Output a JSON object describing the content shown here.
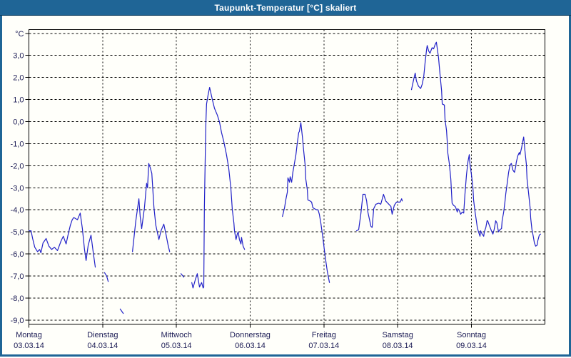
{
  "window": {
    "title": "Taupunkt-Temperatur [°C] skaliert"
  },
  "colors": {
    "titlebar_bg": "#1f6596",
    "titlebar_text": "#ffffff",
    "window_border": "#1f6596",
    "content_bg": "#fffffa",
    "frame": "#000000",
    "grid": "#000000",
    "tick_label": "#1c1c55",
    "line": "#2121c8"
  },
  "chart_data": {
    "type": "line",
    "title": "Taupunkt-Temperatur [°C] skaliert",
    "y_axis": {
      "unit": "°C",
      "range": [
        -9.2,
        4.2
      ],
      "ticks": [
        {
          "value": 4,
          "label": "°C"
        },
        {
          "value": 3,
          "label": "3,0"
        },
        {
          "value": 2,
          "label": "2,0"
        },
        {
          "value": 1,
          "label": "1,0"
        },
        {
          "value": 0,
          "label": "0,0"
        },
        {
          "value": -1,
          "label": "-1,0"
        },
        {
          "value": -2,
          "label": "-2,0"
        },
        {
          "value": -3,
          "label": "-3,0"
        },
        {
          "value": -4,
          "label": "-4,0"
        },
        {
          "value": -5,
          "label": "-5,0"
        },
        {
          "value": -6,
          "label": "-6,0"
        },
        {
          "value": -7,
          "label": "-7,0"
        },
        {
          "value": -8,
          "label": "-8,0"
        },
        {
          "value": -9,
          "label": "-9,0"
        }
      ]
    },
    "x_axis": {
      "unit": "hours_since_monday_0000",
      "range_hours": [
        0,
        168
      ],
      "ticks": [
        {
          "hour": 0,
          "day": "Montag",
          "date": "03.03.14"
        },
        {
          "hour": 24,
          "day": "Dienstag",
          "date": "04.03.14"
        },
        {
          "hour": 48,
          "day": "Mittwoch",
          "date": "05.03.14"
        },
        {
          "hour": 72,
          "day": "Donnerstag",
          "date": "06.03.14"
        },
        {
          "hour": 96,
          "day": "Freitag",
          "date": "07.03.14"
        },
        {
          "hour": 120,
          "day": "Samstag",
          "date": "08.03.14"
        },
        {
          "hour": 144,
          "day": "Sonntag",
          "date": "09.03.14"
        }
      ]
    },
    "grid": {
      "horizontal": "dashed",
      "vertical": "dashed"
    },
    "legend": "none",
    "series": [
      {
        "name": "Taupunkt-Temperatur",
        "color": "#2121c8",
        "segments": [
          [
            [
              0,
              -4.95
            ],
            [
              0.7,
              -4.95
            ],
            [
              1.2,
              -5.3
            ],
            [
              1.9,
              -5.7
            ],
            [
              2.8,
              -5.9
            ],
            [
              3.5,
              -5.8
            ],
            [
              3.9,
              -5.95
            ],
            [
              4.6,
              -5.5
            ],
            [
              5.4,
              -5.35
            ],
            [
              5.6,
              -5.3
            ],
            [
              6.5,
              -5.65
            ],
            [
              7.4,
              -5.8
            ],
            [
              8.3,
              -5.7
            ],
            [
              9.3,
              -5.85
            ],
            [
              10.5,
              -5.4
            ],
            [
              11.2,
              -5.2
            ],
            [
              12.1,
              -5.55
            ],
            [
              12.8,
              -5.1
            ],
            [
              13.5,
              -4.7
            ],
            [
              14.1,
              -4.45
            ],
            [
              14.6,
              -4.35
            ],
            [
              15.8,
              -4.45
            ],
            [
              16.7,
              -4.15
            ],
            [
              17.4,
              -4.85
            ],
            [
              18.1,
              -5.8
            ],
            [
              18.6,
              -6.3
            ],
            [
              19.3,
              -5.6
            ],
            [
              20.2,
              -5.15
            ],
            [
              20.9,
              -5.9
            ],
            [
              21.6,
              -6.6
            ]
          ],
          [
            [
              24.6,
              -6.85
            ],
            [
              25.3,
              -7.0
            ],
            [
              25.8,
              -7.25
            ]
          ],
          [
            [
              29.7,
              -8.5
            ],
            [
              30.7,
              -8.7
            ]
          ],
          [
            [
              33.7,
              -5.9
            ],
            [
              34.4,
              -5.0
            ],
            [
              34.8,
              -4.5
            ],
            [
              35.8,
              -3.5
            ],
            [
              36.2,
              -4.3
            ],
            [
              36.7,
              -4.85
            ],
            [
              37.6,
              -3.9
            ],
            [
              38.3,
              -2.8
            ],
            [
              38.6,
              -3.0
            ],
            [
              39.0,
              -1.9
            ],
            [
              39.5,
              -2.1
            ],
            [
              40.0,
              -2.35
            ],
            [
              40.7,
              -3.9
            ],
            [
              41.3,
              -4.7
            ],
            [
              42.3,
              -5.35
            ],
            [
              43.0,
              -4.95
            ],
            [
              43.9,
              -4.65
            ],
            [
              44.6,
              -5.1
            ],
            [
              45.3,
              -5.6
            ],
            [
              45.8,
              -5.9
            ]
          ],
          [
            [
              49.5,
              -6.9
            ],
            [
              50.4,
              -7.05
            ]
          ],
          [
            [
              53.0,
              -7.3
            ],
            [
              53.4,
              -7.55
            ],
            [
              54.1,
              -7.2
            ],
            [
              54.8,
              -6.9
            ],
            [
              55.5,
              -7.5
            ],
            [
              56.2,
              -7.3
            ],
            [
              56.7,
              -7.55
            ],
            [
              56.9,
              -7.5
            ],
            [
              57.1,
              -4.0
            ],
            [
              57.4,
              -1.5
            ],
            [
              57.6,
              0.0
            ],
            [
              57.8,
              0.8
            ],
            [
              58.3,
              1.2
            ],
            [
              58.8,
              1.55
            ],
            [
              59.2,
              1.3
            ],
            [
              59.7,
              1.0
            ],
            [
              60.4,
              0.6
            ],
            [
              61.3,
              0.3
            ],
            [
              62.0,
              0.0
            ],
            [
              62.7,
              -0.5
            ],
            [
              63.4,
              -0.9
            ],
            [
              64.3,
              -1.5
            ],
            [
              65.0,
              -2.1
            ],
            [
              65.7,
              -3.0
            ],
            [
              66.2,
              -4.0
            ],
            [
              66.7,
              -4.6
            ],
            [
              66.9,
              -4.95
            ],
            [
              67.4,
              -5.35
            ],
            [
              67.8,
              -5.1
            ],
            [
              68.1,
              -5.0
            ],
            [
              68.5,
              -5.35
            ],
            [
              69.0,
              -5.55
            ],
            [
              69.2,
              -5.25
            ],
            [
              69.7,
              -5.65
            ],
            [
              70.2,
              -5.8
            ]
          ],
          [
            [
              82.5,
              -4.3
            ],
            [
              83.2,
              -3.9
            ],
            [
              83.6,
              -3.55
            ],
            [
              84.1,
              -3.2
            ],
            [
              84.3,
              -2.55
            ],
            [
              84.8,
              -2.75
            ],
            [
              85.0,
              -2.5
            ],
            [
              85.5,
              -2.75
            ],
            [
              85.9,
              -2.3
            ],
            [
              86.4,
              -1.9
            ],
            [
              86.9,
              -1.5
            ],
            [
              87.3,
              -1.0
            ],
            [
              87.8,
              -0.5
            ],
            [
              88.0,
              -0.45
            ],
            [
              88.3,
              -0.2
            ],
            [
              88.5,
              -0.05
            ],
            [
              89.0,
              -0.7
            ],
            [
              89.4,
              -1.3
            ],
            [
              89.9,
              -2.0
            ],
            [
              90.1,
              -2.6
            ],
            [
              90.6,
              -3.1
            ],
            [
              90.8,
              -3.55
            ],
            [
              91.5,
              -3.6
            ],
            [
              92.0,
              -3.65
            ],
            [
              92.4,
              -3.9
            ],
            [
              92.9,
              -3.95
            ],
            [
              93.6,
              -4.0
            ],
            [
              94.1,
              -4.0
            ],
            [
              94.5,
              -4.2
            ],
            [
              95.0,
              -4.6
            ],
            [
              95.7,
              -5.3
            ],
            [
              96.4,
              -6.1
            ],
            [
              97.1,
              -6.8
            ],
            [
              97.8,
              -7.3
            ]
          ],
          [
            [
              106.6,
              -4.95
            ],
            [
              107.3,
              -4.9
            ],
            [
              108.0,
              -4.2
            ],
            [
              108.7,
              -3.3
            ],
            [
              109.4,
              -3.3
            ],
            [
              109.9,
              -3.6
            ],
            [
              110.3,
              -4.1
            ],
            [
              111.3,
              -4.75
            ],
            [
              111.7,
              -4.8
            ],
            [
              112.2,
              -3.95
            ],
            [
              112.9,
              -3.75
            ],
            [
              113.8,
              -3.7
            ],
            [
              114.5,
              -3.75
            ],
            [
              115.4,
              -3.3
            ],
            [
              116.1,
              -3.6
            ],
            [
              116.8,
              -3.7
            ],
            [
              117.8,
              -3.85
            ],
            [
              118.2,
              -4.2
            ],
            [
              118.9,
              -3.8
            ],
            [
              119.6,
              -3.65
            ],
            [
              120.3,
              -3.65
            ],
            [
              120.8,
              -3.65
            ],
            [
              121.3,
              -3.5
            ],
            [
              121.5,
              -3.6
            ]
          ],
          [
            [
              124.5,
              1.45
            ],
            [
              125.2,
              1.9
            ],
            [
              125.7,
              2.2
            ],
            [
              126.1,
              1.85
            ],
            [
              126.8,
              1.6
            ],
            [
              127.5,
              1.5
            ],
            [
              128.0,
              1.7
            ],
            [
              128.5,
              2.05
            ],
            [
              128.9,
              2.65
            ],
            [
              129.4,
              3.25
            ],
            [
              129.6,
              3.45
            ],
            [
              130.1,
              3.2
            ],
            [
              130.5,
              3.1
            ],
            [
              131.2,
              3.35
            ],
            [
              131.7,
              3.3
            ],
            [
              132.2,
              3.5
            ],
            [
              132.6,
              3.6
            ],
            [
              133.3,
              2.9
            ],
            [
              133.8,
              2.1
            ],
            [
              134.3,
              1.4
            ],
            [
              134.5,
              0.8
            ],
            [
              135.2,
              0.75
            ],
            [
              135.4,
              0.1
            ],
            [
              135.9,
              -0.4
            ],
            [
              136.1,
              -0.85
            ],
            [
              136.3,
              -1.4
            ],
            [
              136.8,
              -1.9
            ],
            [
              137.3,
              -2.6
            ],
            [
              137.7,
              -3.7
            ],
            [
              138.2,
              -3.8
            ],
            [
              138.7,
              -3.85
            ],
            [
              138.9,
              -3.9
            ],
            [
              139.4,
              -4.1
            ],
            [
              139.6,
              -3.95
            ],
            [
              140.1,
              -4.05
            ],
            [
              140.5,
              -4.2
            ],
            [
              141.0,
              -4.1
            ],
            [
              141.5,
              -4.15
            ],
            [
              141.9,
              -3.3
            ],
            [
              142.4,
              -2.4
            ],
            [
              142.9,
              -1.8
            ],
            [
              143.3,
              -1.5
            ],
            [
              143.5,
              -1.9
            ],
            [
              144.0,
              -2.4
            ],
            [
              144.5,
              -3.0
            ],
            [
              144.7,
              -3.55
            ],
            [
              145.2,
              -4.1
            ],
            [
              145.6,
              -4.5
            ],
            [
              145.9,
              -4.8
            ],
            [
              146.3,
              -5.0
            ],
            [
              146.8,
              -5.2
            ],
            [
              147.0,
              -4.95
            ],
            [
              147.5,
              -5.1
            ],
            [
              148.0,
              -5.2
            ],
            [
              148.2,
              -5.0
            ],
            [
              148.7,
              -4.8
            ],
            [
              149.1,
              -4.5
            ],
            [
              149.3,
              -4.5
            ],
            [
              149.8,
              -4.7
            ],
            [
              150.5,
              -4.95
            ],
            [
              151.0,
              -5.1
            ],
            [
              151.4,
              -4.9
            ],
            [
              151.9,
              -4.5
            ],
            [
              152.3,
              -4.6
            ],
            [
              152.8,
              -5.0
            ],
            [
              153.3,
              -4.9
            ],
            [
              153.8,
              -4.85
            ],
            [
              154.0,
              -4.5
            ],
            [
              154.5,
              -4.1
            ],
            [
              154.9,
              -3.65
            ],
            [
              155.2,
              -3.25
            ],
            [
              155.6,
              -2.85
            ],
            [
              156.1,
              -2.3
            ],
            [
              156.6,
              -1.95
            ],
            [
              157.0,
              -1.9
            ],
            [
              157.5,
              -2.2
            ],
            [
              158.0,
              -2.3
            ],
            [
              158.4,
              -2.05
            ],
            [
              158.6,
              -1.85
            ],
            [
              159.1,
              -1.55
            ],
            [
              159.6,
              -1.4
            ],
            [
              159.8,
              -1.5
            ],
            [
              160.3,
              -1.2
            ],
            [
              160.7,
              -0.9
            ],
            [
              161.0,
              -0.7
            ],
            [
              161.4,
              -1.3
            ],
            [
              161.9,
              -1.95
            ],
            [
              162.1,
              -2.6
            ],
            [
              162.6,
              -3.25
            ],
            [
              163.1,
              -3.9
            ],
            [
              163.3,
              -4.4
            ],
            [
              163.7,
              -4.9
            ],
            [
              164.2,
              -5.25
            ],
            [
              164.5,
              -5.5
            ],
            [
              164.9,
              -5.65
            ],
            [
              165.4,
              -5.6
            ],
            [
              165.6,
              -5.4
            ],
            [
              166.1,
              -5.15
            ],
            [
              166.5,
              -5.1
            ]
          ]
        ]
      }
    ]
  }
}
